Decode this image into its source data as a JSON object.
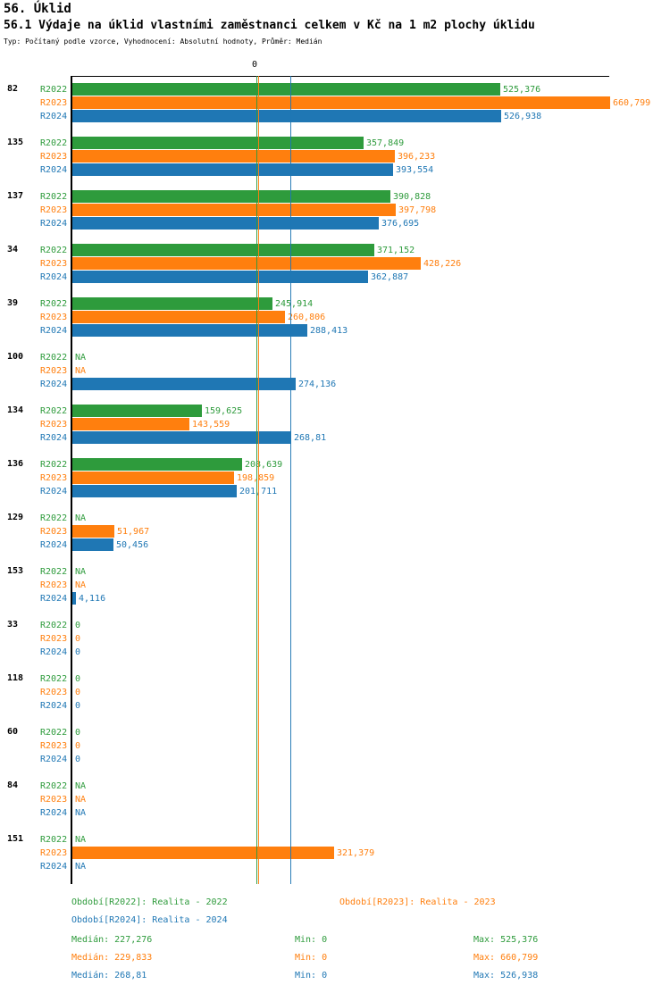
{
  "chart_data": {
    "type": "bar",
    "orientation": "horizontal",
    "title": "56. Úklid",
    "subtitle": "56.1 Výdaje na úklid vlastními zaměstnanci celkem v Kč na 1 m2 plochy úklidu",
    "meta": "Typ: Počítaný podle vzorce, Vyhodnocení: Absolutní hodnoty, Průměr: Medián",
    "axis_zero_label": "0",
    "series": [
      "R2022",
      "R2023",
      "R2024"
    ],
    "groups": [
      {
        "id": "82",
        "values": [
          "525,376",
          "660,799",
          "526,938"
        ]
      },
      {
        "id": "135",
        "values": [
          "357,849",
          "396,233",
          "393,554"
        ]
      },
      {
        "id": "137",
        "values": [
          "390,828",
          "397,798",
          "376,695"
        ]
      },
      {
        "id": "34",
        "values": [
          "371,152",
          "428,226",
          "362,887"
        ]
      },
      {
        "id": "39",
        "values": [
          "245,914",
          "260,806",
          "288,413"
        ]
      },
      {
        "id": "100",
        "values": [
          "NA",
          "NA",
          "274,136"
        ]
      },
      {
        "id": "134",
        "values": [
          "159,625",
          "143,559",
          "268,81"
        ]
      },
      {
        "id": "136",
        "values": [
          "208,639",
          "198,859",
          "201,711"
        ]
      },
      {
        "id": "129",
        "values": [
          "NA",
          "51,967",
          "50,456"
        ]
      },
      {
        "id": "153",
        "values": [
          "NA",
          "NA",
          "4,116"
        ]
      },
      {
        "id": "33",
        "values": [
          "0",
          "0",
          "0"
        ]
      },
      {
        "id": "118",
        "values": [
          "0",
          "0",
          "0"
        ]
      },
      {
        "id": "60",
        "values": [
          "0",
          "0",
          "0"
        ]
      },
      {
        "id": "84",
        "values": [
          "NA",
          "NA",
          "NA"
        ]
      },
      {
        "id": "151",
        "values": [
          "NA",
          "321,379",
          "NA"
        ]
      }
    ],
    "medians": {
      "R2022": "227,276",
      "R2023": "229,833",
      "R2024": "268,81"
    },
    "xlim": [
      0,
      660.799
    ],
    "grid": false,
    "legend_position": "bottom"
  },
  "colors": {
    "r2022": "#2e9b3c",
    "r2023": "#ff7f0e",
    "r2024": "#1f77b4",
    "axis": "#000000"
  },
  "legend": {
    "r2022": "Období[R2022]: Realita - 2022",
    "r2023": "Období[R2023]: Realita - 2023",
    "r2024": "Období[R2024]: Realita - 2024"
  },
  "summary": [
    {
      "median": "Medián: 227,276",
      "min": "Min: 0",
      "max": "Max: 525,376"
    },
    {
      "median": "Medián: 229,833",
      "min": "Min: 0",
      "max": "Max: 660,799"
    },
    {
      "median": "Medián: 268,81",
      "min": "Min: 0",
      "max": "Max: 526,938"
    }
  ]
}
